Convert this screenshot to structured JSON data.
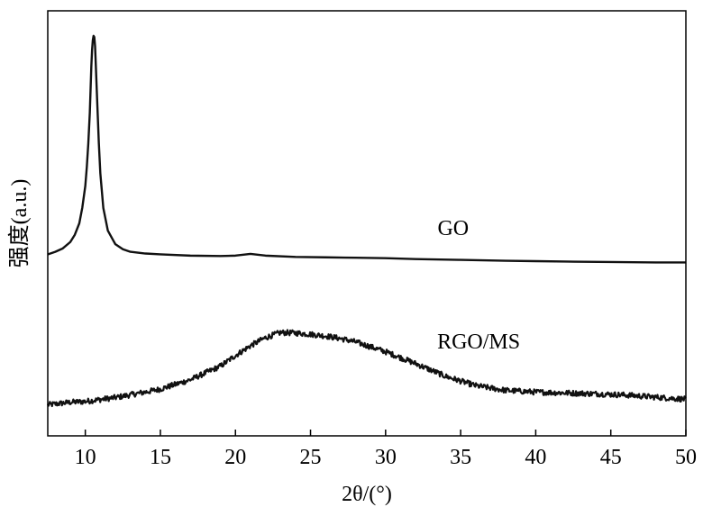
{
  "chart_data": {
    "type": "line",
    "title": "",
    "xlabel": "2θ/(°)",
    "ylabel": "强度(a.u.)",
    "xlim": [
      7.5,
      50
    ],
    "ylim": [
      0,
      100
    ],
    "xticks": [
      "10",
      "15",
      "20",
      "25",
      "30",
      "35",
      "40",
      "45",
      "50"
    ],
    "grid": false,
    "legend": "none",
    "colors": {
      "line": "#111111",
      "axis": "#000000"
    },
    "series": [
      {
        "name": "GO",
        "x": [
          7.5,
          8.0,
          8.5,
          9.0,
          9.3,
          9.6,
          9.8,
          10.0,
          10.1,
          10.2,
          10.3,
          10.35,
          10.4,
          10.45,
          10.5,
          10.55,
          10.6,
          10.65,
          10.7,
          10.8,
          10.9,
          11.0,
          11.2,
          11.5,
          12.0,
          12.5,
          13.0,
          14.0,
          15.0,
          17.0,
          19.0,
          20.0,
          21.0,
          22.0,
          24.0,
          26.0,
          28.0,
          30.0,
          32.0,
          35.0,
          38.0,
          40.0,
          42.0,
          45.0,
          48.0,
          50.0
        ],
        "y": [
          42.7,
          43.3,
          44.1,
          45.6,
          47.3,
          50.0,
          53.7,
          58.8,
          63.2,
          68.8,
          76.0,
          81.4,
          86.8,
          90.7,
          93.1,
          94.1,
          93.8,
          91.7,
          87.2,
          78.0,
          69.0,
          61.8,
          53.6,
          48.3,
          45.1,
          43.9,
          43.3,
          42.9,
          42.7,
          42.4,
          42.3,
          42.4,
          42.8,
          42.4,
          42.1,
          42.0,
          41.9,
          41.8,
          41.6,
          41.4,
          41.2,
          41.1,
          41.0,
          40.9,
          40.8,
          40.8
        ]
      },
      {
        "name": "RGO/MS",
        "x": [
          7.5,
          9.0,
          10.0,
          12.0,
          14.0,
          15.0,
          17.0,
          19.0,
          20.0,
          21.0,
          22.0,
          23.0,
          24.0,
          25.0,
          26.0,
          27.0,
          28.0,
          30.0,
          32.0,
          34.0,
          36.0,
          38.0,
          40.0,
          42.0,
          44.0,
          46.0,
          48.0,
          50.0
        ],
        "y": [
          7.3,
          7.9,
          8.1,
          9.0,
          10.3,
          11.0,
          13.2,
          16.4,
          18.9,
          21.2,
          23.1,
          24.3,
          24.2,
          23.9,
          23.5,
          22.9,
          22.1,
          19.8,
          17.0,
          14.0,
          11.8,
          10.7,
          10.3,
          10.1,
          9.9,
          9.6,
          9.1,
          8.6
        ]
      }
    ],
    "annotations": [
      {
        "text": "GO",
        "x": 34.5,
        "y": 47.2
      },
      {
        "text": "RGO/MS",
        "x": 36.2,
        "y": 20.5
      }
    ]
  }
}
